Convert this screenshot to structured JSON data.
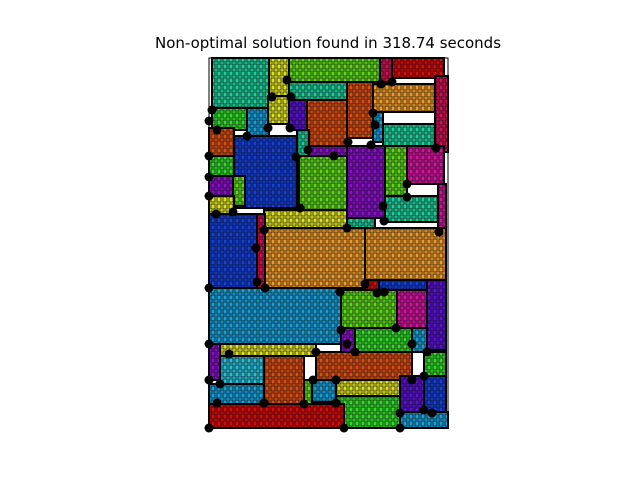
{
  "title": "Non-optimal solution found in 318.74 seconds",
  "palette": {
    "red": "#d40d0d",
    "orange": "#ee9a2c",
    "dark_orange": "#d94f14",
    "teal": "#1fcf9a",
    "green": "#33d92c",
    "lime": "#5fd81c",
    "yellow": "#dde022",
    "blue": "#1740d6",
    "sky": "#1a9fd8",
    "cyan": "#2bbfd6",
    "purple": "#8a12c9",
    "violet": "#5a14d0",
    "magenta": "#d415a0",
    "crimson": "#d11254",
    "grid_pattern": "#000000",
    "dot": "#000000"
  }
}
